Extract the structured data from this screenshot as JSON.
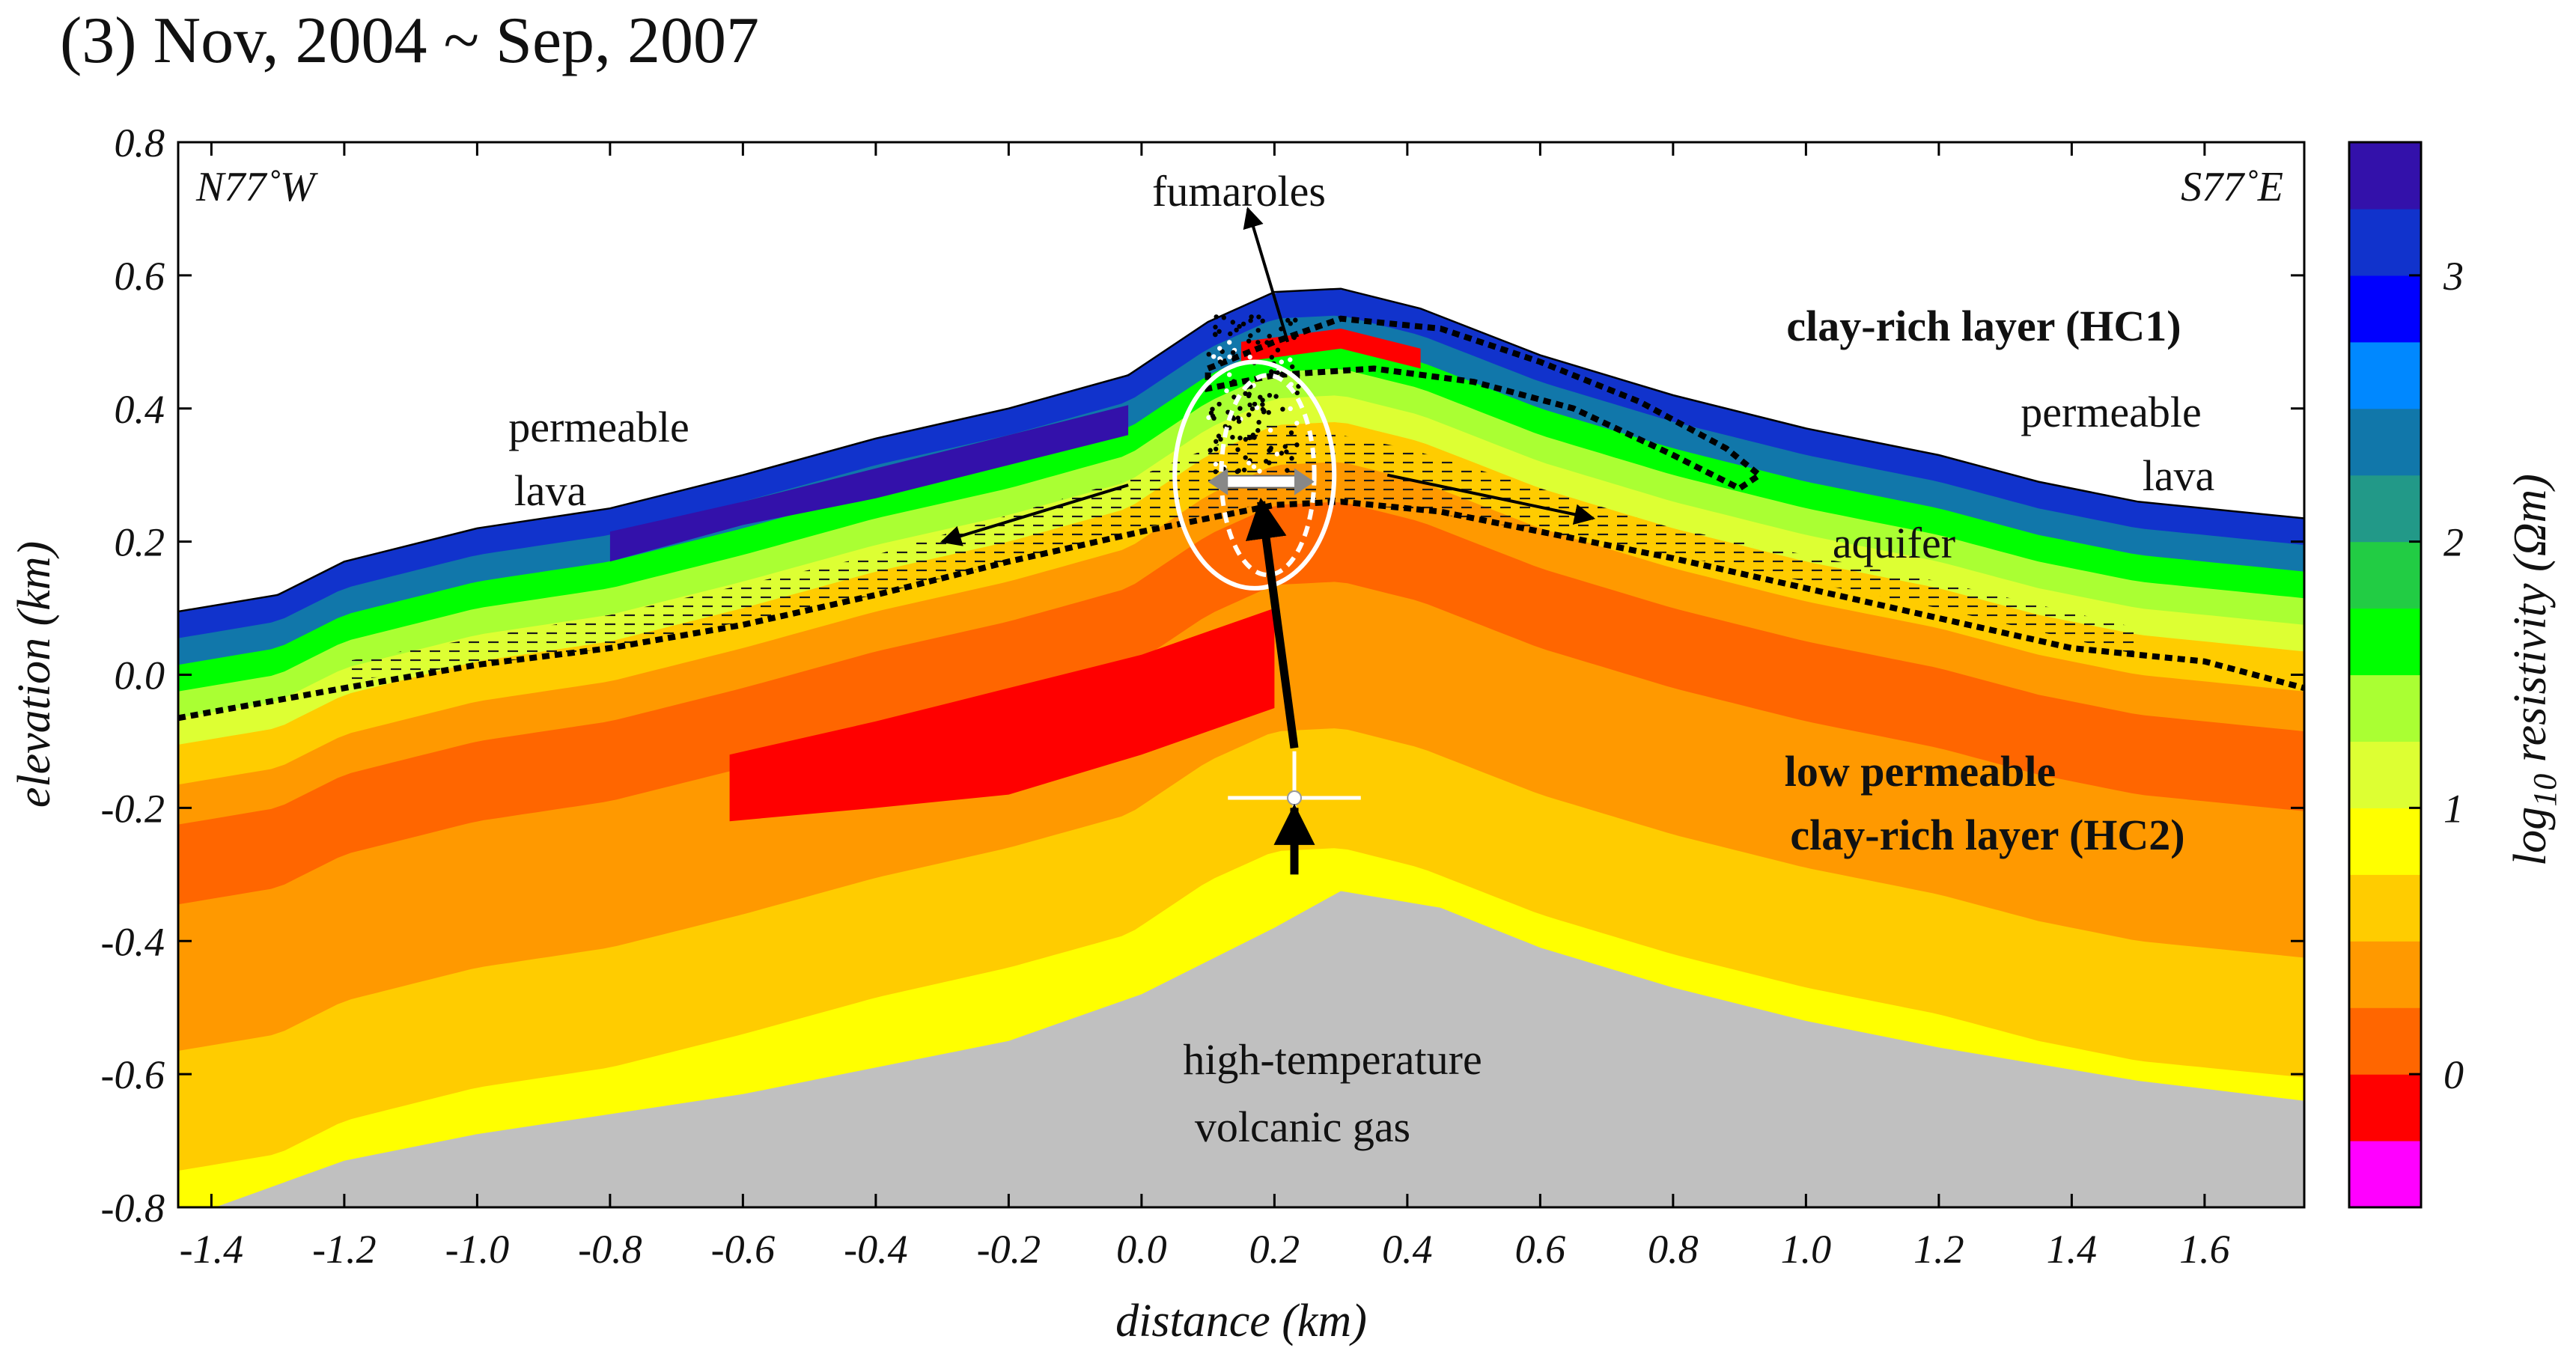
{
  "title": "(3)  Nov, 2004 ~ Sep, 2007",
  "chart_data": {
    "type": "heatmap",
    "description_kind": "resistivity cross-section",
    "xlabel": "distance (km)",
    "ylabel": "elevation (km)",
    "xlim": [
      -1.45,
      1.75
    ],
    "ylim": [
      -0.8,
      0.8
    ],
    "x_ticks": [
      -1.4,
      -1.2,
      -1.0,
      -0.8,
      -0.6,
      -0.4,
      -0.2,
      0.0,
      0.2,
      0.4,
      0.6,
      0.8,
      1.0,
      1.2,
      1.4,
      1.6
    ],
    "x_tick_labels": [
      "-1.4",
      "-1.2",
      "-1.0",
      "-0.8",
      "-0.6",
      "-0.4",
      "-0.2",
      "0.0",
      "0.2",
      "0.4",
      "0.6",
      "0.8",
      "1.0",
      "1.2",
      "1.4",
      "1.6"
    ],
    "y_ticks": [
      -0.8,
      -0.6,
      -0.4,
      -0.2,
      0.0,
      0.2,
      0.4,
      0.6,
      0.8
    ],
    "y_tick_labels": [
      "-0.8",
      "-0.6",
      "-0.4",
      "-0.2",
      "0.0",
      "0.2",
      "0.4",
      "0.6",
      "0.8"
    ],
    "direction_left": "N77˚W",
    "direction_right": "S77˚E",
    "topography": {
      "x": [
        -1.45,
        -1.3,
        -1.2,
        -1.0,
        -0.8,
        -0.6,
        -0.4,
        -0.2,
        -0.02,
        0.1,
        0.2,
        0.3,
        0.42,
        0.6,
        0.8,
        1.0,
        1.2,
        1.35,
        1.5,
        1.75
      ],
      "z": [
        0.095,
        0.12,
        0.17,
        0.22,
        0.25,
        0.3,
        0.355,
        0.4,
        0.45,
        0.53,
        0.575,
        0.58,
        0.55,
        0.48,
        0.42,
        0.37,
        0.33,
        0.29,
        0.26,
        0.235
      ]
    },
    "basement_top": {
      "x": [
        -1.45,
        -1.2,
        -1.0,
        -0.6,
        -0.2,
        0.0,
        0.2,
        0.3,
        0.45,
        0.6,
        0.8,
        1.0,
        1.2,
        1.5,
        1.75
      ],
      "z": [
        -0.82,
        -0.73,
        -0.69,
        -0.63,
        -0.55,
        -0.48,
        -0.38,
        -0.325,
        -0.35,
        -0.41,
        -0.47,
        -0.52,
        -0.56,
        -0.61,
        -0.64
      ]
    },
    "layers": [
      {
        "offset": 0.0,
        "log10_rho": 3.1
      },
      {
        "offset": 0.04,
        "log10_rho": 2.3
      },
      {
        "offset": 0.08,
        "log10_rho": 1.7
      },
      {
        "offset": 0.12,
        "log10_rho": 1.3
      },
      {
        "offset": 0.16,
        "log10_rho": 1.0
      },
      {
        "offset": 0.2,
        "log10_rho": 0.7
      },
      {
        "offset": 0.26,
        "log10_rho": 0.25
      },
      {
        "offset": 0.32,
        "log10_rho": 0.05
      },
      {
        "offset": 0.44,
        "log10_rho": 0.25
      },
      {
        "offset": 0.66,
        "log10_rho": 0.55
      },
      {
        "offset": 0.84,
        "log10_rho": 0.75
      },
      {
        "offset": 0.96,
        "log10_rho": 1.0
      }
    ],
    "anomalies": [
      {
        "name": "high-resistivity lens",
        "log10_rho": 3.3,
        "x": [
          -0.8,
          -0.6,
          -0.4,
          -0.02,
          -0.02,
          -0.4,
          -0.6,
          -0.8
        ],
        "z": [
          0.215,
          0.26,
          0.31,
          0.405,
          0.36,
          0.265,
          0.225,
          0.17
        ]
      },
      {
        "name": "low-resistivity core",
        "log10_rho": -0.2,
        "x": [
          -0.62,
          -0.4,
          -0.2,
          0.0,
          0.2,
          0.2,
          0.0,
          -0.2,
          -0.4,
          -0.62
        ],
        "z": [
          -0.12,
          -0.07,
          -0.02,
          0.03,
          0.1,
          -0.05,
          -0.12,
          -0.18,
          -0.2,
          -0.22
        ]
      },
      {
        "name": "HC1 red layer",
        "log10_rho": -0.2,
        "x": [
          0.15,
          0.3,
          0.42,
          0.42,
          0.3,
          0.15
        ],
        "z": [
          0.5,
          0.52,
          0.49,
          0.46,
          0.49,
          0.47
        ]
      }
    ],
    "dotted_boundaries": [
      {
        "name": "aquifer base",
        "x": [
          -1.45,
          -1.2,
          -1.0,
          -0.8,
          -0.6,
          -0.4,
          -0.2,
          0.0,
          0.2,
          0.3,
          0.45,
          0.6,
          0.8,
          1.0,
          1.2,
          1.4,
          1.6,
          1.75
        ],
        "z": [
          -0.065,
          -0.02,
          0.015,
          0.04,
          0.075,
          0.12,
          0.17,
          0.215,
          0.255,
          0.26,
          0.245,
          0.215,
          0.175,
          0.13,
          0.085,
          0.04,
          0.02,
          -0.02
        ]
      },
      {
        "name": "HC1 outline",
        "closed": true,
        "x": [
          0.1,
          0.2,
          0.3,
          0.45,
          0.6,
          0.75,
          0.88,
          0.93,
          0.9,
          0.8,
          0.65,
          0.5,
          0.35,
          0.2,
          0.1
        ],
        "z": [
          0.46,
          0.5,
          0.535,
          0.52,
          0.47,
          0.41,
          0.34,
          0.3,
          0.28,
          0.33,
          0.4,
          0.44,
          0.46,
          0.45,
          0.43
        ]
      }
    ],
    "aquifer_hatch": {
      "upper": {
        "x": [
          -1.2,
          -0.8,
          -0.4,
          0.0,
          0.2,
          0.4,
          0.8,
          1.2,
          1.5
        ],
        "z": [
          0.02,
          0.09,
          0.18,
          0.3,
          0.38,
          0.34,
          0.22,
          0.14,
          0.07
        ]
      },
      "lower": {
        "x": [
          -1.2,
          -0.8,
          -0.4,
          0.0,
          0.2,
          0.4,
          0.8,
          1.2,
          1.5
        ],
        "z": [
          -0.01,
          0.04,
          0.12,
          0.22,
          0.26,
          0.25,
          0.18,
          0.1,
          0.03
        ]
      }
    },
    "source_point": {
      "x": 0.23,
      "z": -0.185,
      "x_err": 0.1,
      "z_err": 0.07
    },
    "ellipses": [
      {
        "cx": 0.17,
        "cz": 0.3,
        "rx": 0.12,
        "rz": 0.17,
        "style": "solid"
      },
      {
        "cx": 0.19,
        "cz": 0.3,
        "rx": 0.07,
        "rz": 0.15,
        "style": "dashed"
      }
    ],
    "arrows": [
      {
        "name": "gas-up-lower",
        "from": [
          0.23,
          -0.3
        ],
        "to": [
          0.23,
          -0.2
        ],
        "bold": true
      },
      {
        "name": "gas-up-upper",
        "from": [
          0.23,
          -0.11
        ],
        "to": [
          0.18,
          0.26
        ],
        "bold": true
      },
      {
        "name": "to-fumaroles",
        "from": [
          0.22,
          0.5
        ],
        "to": [
          0.16,
          0.7
        ],
        "bold": false
      },
      {
        "name": "flow-west",
        "from": [
          -0.02,
          0.285
        ],
        "to": [
          -0.3,
          0.2
        ],
        "bold": false
      },
      {
        "name": "flow-east",
        "from": [
          0.37,
          0.3
        ],
        "to": [
          0.68,
          0.235
        ],
        "bold": false
      }
    ],
    "annotations": {
      "fumaroles": "fumaroles",
      "clay_hc1": "clay-rich layer (HC1)",
      "permeable_left": "permeable",
      "lava_left": "lava",
      "permeable_right": "permeable",
      "lava_right": "lava",
      "aquifer": "aquifer",
      "hc2_line1": "low permeable",
      "hc2_line2": "clay-rich layer (HC2)",
      "gas_line1": "high-temperature",
      "gas_line2": "volcanic gas"
    },
    "colorbar": {
      "label_main": "log",
      "label_sub": "10",
      "label_rest": " resistivity (Ωm)",
      "min": -0.5,
      "max": 3.5,
      "step": 0.25,
      "tick_values": [
        0,
        1,
        2,
        3
      ],
      "tick_labels": [
        "0",
        "1",
        "2",
        "3"
      ],
      "colors": [
        "#ff00ff",
        "#ff0000",
        "#ff6600",
        "#ff9900",
        "#ffcc00",
        "#ffff00",
        "#ddff33",
        "#aaff33",
        "#00ff00",
        "#22cc44",
        "#229988",
        "#1177aa",
        "#0088ff",
        "#0000ff",
        "#1133cc",
        "#3311aa",
        "#880055"
      ]
    },
    "basement_color": "#c0c0c0"
  }
}
